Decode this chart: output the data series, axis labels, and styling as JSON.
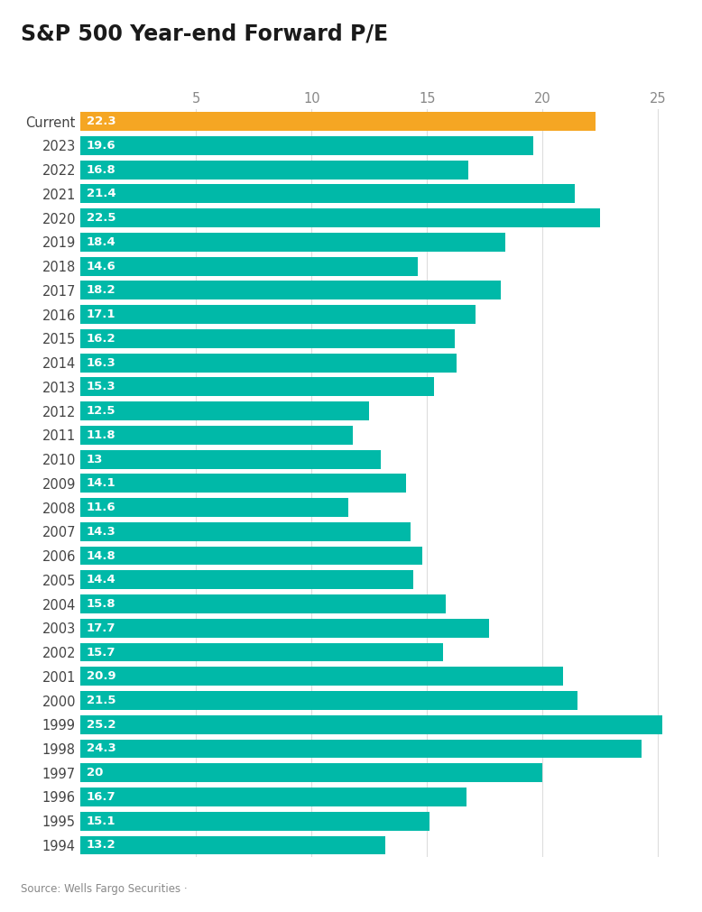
{
  "title": "S&P 500 Year-end Forward P/E",
  "categories": [
    "Current",
    "2023",
    "2022",
    "2021",
    "2020",
    "2019",
    "2018",
    "2017",
    "2016",
    "2015",
    "2014",
    "2013",
    "2012",
    "2011",
    "2010",
    "2009",
    "2008",
    "2007",
    "2006",
    "2005",
    "2004",
    "2003",
    "2002",
    "2001",
    "2000",
    "1999",
    "1998",
    "1997",
    "1996",
    "1995",
    "1994"
  ],
  "values": [
    22.3,
    19.6,
    16.8,
    21.4,
    22.5,
    18.4,
    14.6,
    18.2,
    17.1,
    16.2,
    16.3,
    15.3,
    12.5,
    11.8,
    13.0,
    14.1,
    11.6,
    14.3,
    14.8,
    14.4,
    15.8,
    17.7,
    15.7,
    20.9,
    21.5,
    25.2,
    24.3,
    20.0,
    16.7,
    15.1,
    13.2
  ],
  "bar_colors": [
    "#F5A623",
    "#00B9A8",
    "#00B9A8",
    "#00B9A8",
    "#00B9A8",
    "#00B9A8",
    "#00B9A8",
    "#00B9A8",
    "#00B9A8",
    "#00B9A8",
    "#00B9A8",
    "#00B9A8",
    "#00B9A8",
    "#00B9A8",
    "#00B9A8",
    "#00B9A8",
    "#00B9A8",
    "#00B9A8",
    "#00B9A8",
    "#00B9A8",
    "#00B9A8",
    "#00B9A8",
    "#00B9A8",
    "#00B9A8",
    "#00B9A8",
    "#00B9A8",
    "#00B9A8",
    "#00B9A8",
    "#00B9A8",
    "#00B9A8",
    "#00B9A8"
  ],
  "background_color": "#FFFFFF",
  "text_color": "#444444",
  "label_color": "#FFFFFF",
  "source_text_plain": "Source: Wells Fargo Securities · ",
  "link_color": "#4A90D9",
  "xlim": [
    0,
    26
  ],
  "xticks": [
    5,
    10,
    15,
    20,
    25
  ],
  "bar_height": 0.78,
  "title_fontsize": 17,
  "tick_fontsize": 10.5,
  "label_fontsize": 9.5,
  "source_fontsize": 8.5,
  "grid_color": "#DDDDDD",
  "axis_label_color": "#888888"
}
